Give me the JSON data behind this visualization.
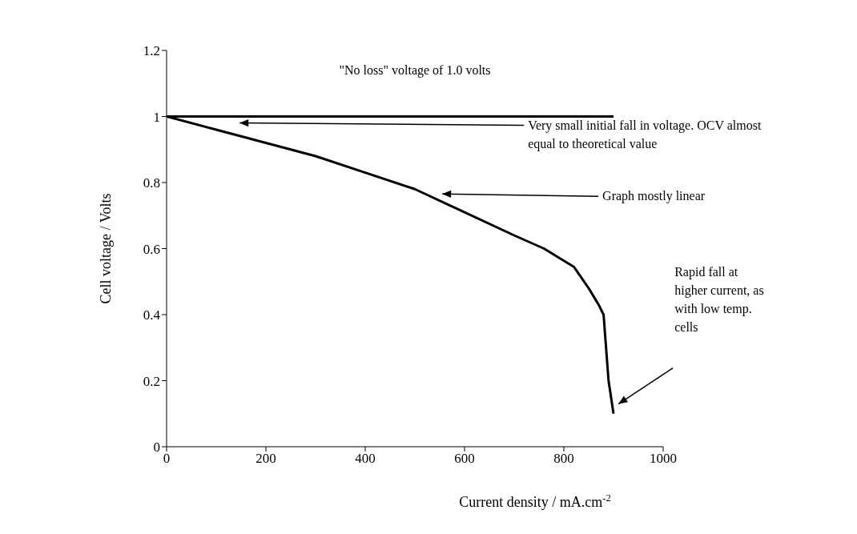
{
  "chart_data": {
    "type": "line",
    "xlabel": "Current density / mA.cm$^{-2}$",
    "ylabel": "Cell voltage / Volts",
    "xlim": [
      0,
      1000
    ],
    "ylim": [
      0,
      1.2
    ],
    "xticks": [
      0,
      200,
      400,
      600,
      800,
      1000
    ],
    "yticks": [
      0,
      0.2,
      0.4,
      0.6,
      0.8,
      1,
      1.2
    ],
    "marker": "none",
    "line_style": "solid",
    "series": [
      {
        "x": [
          0,
          900
        ],
        "values": [
          1,
          1
        ],
        "color": "#000000"
      },
      {
        "x": [
          0,
          100,
          200,
          300,
          400,
          500,
          600,
          700,
          760,
          820,
          850,
          870,
          880,
          890,
          900
        ],
        "values": [
          1,
          0.96,
          0.92,
          0.88,
          0.83,
          0.78,
          0.71,
          0.64,
          0.6,
          0.545,
          0.48,
          0.43,
          0.4,
          0.2,
          0.1
        ],
        "color": "#000000"
      }
    ],
    "annotations": [
      "\"No loss\" voltage of 1.0 volts",
      "Very small initial fall in voltage. OCV almost equal to theoretical value",
      "Graph mostly linear",
      "Rapid fall at higher current, as with low temp. cells"
    ]
  }
}
